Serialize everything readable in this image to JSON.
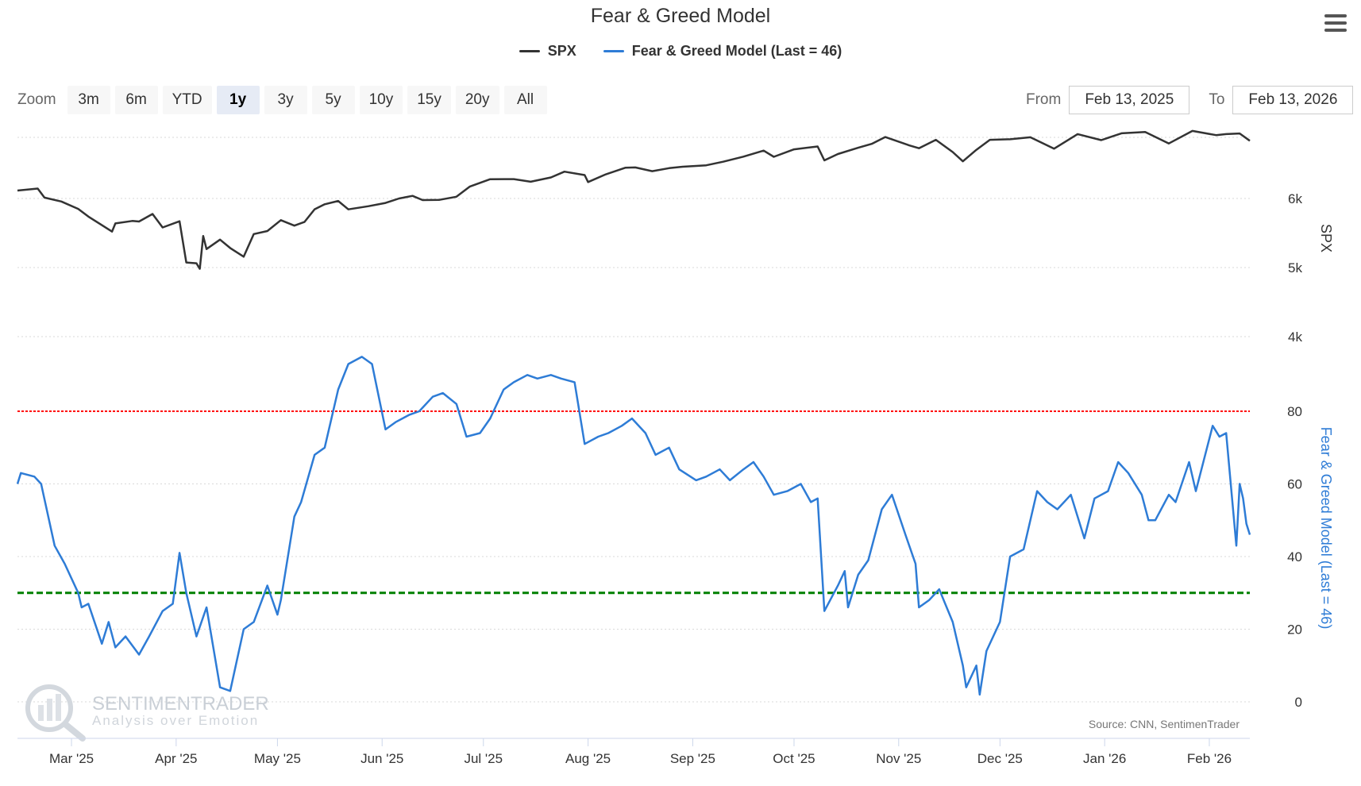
{
  "chart_title": "Fear & Greed Model",
  "legend": [
    {
      "label": "SPX",
      "color": "#333333"
    },
    {
      "label": "Fear & Greed Model (Last = 46)",
      "color": "#2e7cd6"
    }
  ],
  "zoom": {
    "label": "Zoom",
    "buttons": [
      "3m",
      "6m",
      "YTD",
      "1y",
      "3y",
      "5y",
      "10y",
      "15y",
      "20y",
      "All"
    ],
    "active": "1y"
  },
  "range": {
    "from_label": "From",
    "from_value": "Feb 13, 2025",
    "to_label": "To",
    "to_value": "Feb 13, 2026"
  },
  "credits": "Source: CNN, SentimenTrader",
  "watermark": {
    "title": "SENTIMENTRADER",
    "subtitle": "Analysis over Emotion"
  },
  "icons": {
    "menu": "hamburger-menu-icon",
    "watermark": "magnifier-chart-logo-icon"
  },
  "chart_data": [
    {
      "type": "line",
      "name": "SPX",
      "x_range": [
        "2025-02-13",
        "2026-02-13"
      ],
      "ylabel": "SPX",
      "y_ticks": [
        "6k",
        "5k",
        "4k"
      ],
      "ylim": [
        3000,
        7200
      ],
      "color": "#333333",
      "series": [
        {
          "name": "SPX",
          "points": [
            [
              "2025-02-13",
              6115
            ],
            [
              "2025-02-19",
              6144
            ],
            [
              "2025-02-21",
              6013
            ],
            [
              "2025-02-26",
              5956
            ],
            [
              "2025-03-03",
              5849
            ],
            [
              "2025-03-06",
              5738
            ],
            [
              "2025-03-10",
              5614
            ],
            [
              "2025-03-13",
              5521
            ],
            [
              "2025-03-14",
              5639
            ],
            [
              "2025-03-19",
              5675
            ],
            [
              "2025-03-21",
              5667
            ],
            [
              "2025-03-25",
              5776
            ],
            [
              "2025-03-28",
              5581
            ],
            [
              "2025-04-02",
              5670
            ],
            [
              "2025-04-04",
              5074
            ],
            [
              "2025-04-07",
              5062
            ],
            [
              "2025-04-08",
              4982
            ],
            [
              "2025-04-09",
              5456
            ],
            [
              "2025-04-10",
              5268
            ],
            [
              "2025-04-14",
              5405
            ],
            [
              "2025-04-17",
              5283
            ],
            [
              "2025-04-21",
              5158
            ],
            [
              "2025-04-24",
              5485
            ],
            [
              "2025-04-28",
              5529
            ],
            [
              "2025-05-02",
              5686
            ],
            [
              "2025-05-06",
              5607
            ],
            [
              "2025-05-09",
              5660
            ],
            [
              "2025-05-12",
              5844
            ],
            [
              "2025-05-15",
              5916
            ],
            [
              "2025-05-19",
              5964
            ],
            [
              "2025-05-22",
              5842
            ],
            [
              "2025-05-28",
              5888
            ],
            [
              "2025-06-02",
              5936
            ],
            [
              "2025-06-06",
              6000
            ],
            [
              "2025-06-10",
              6038
            ],
            [
              "2025-06-13",
              5977
            ],
            [
              "2025-06-18",
              5981
            ],
            [
              "2025-06-23",
              6025
            ],
            [
              "2025-06-27",
              6173
            ],
            [
              "2025-07-03",
              6279
            ],
            [
              "2025-07-10",
              6280
            ],
            [
              "2025-07-15",
              6243
            ],
            [
              "2025-07-21",
              6305
            ],
            [
              "2025-07-25",
              6388
            ],
            [
              "2025-07-31",
              6339
            ],
            [
              "2025-08-01",
              6238
            ],
            [
              "2025-08-06",
              6345
            ],
            [
              "2025-08-12",
              6445
            ],
            [
              "2025-08-15",
              6449
            ],
            [
              "2025-08-20",
              6395
            ],
            [
              "2025-08-25",
              6439
            ],
            [
              "2025-08-29",
              6460
            ],
            [
              "2025-09-05",
              6481
            ],
            [
              "2025-09-10",
              6532
            ],
            [
              "2025-09-16",
              6606
            ],
            [
              "2025-09-22",
              6693
            ],
            [
              "2025-09-25",
              6604
            ],
            [
              "2025-10-01",
              6711
            ],
            [
              "2025-10-08",
              6753
            ],
            [
              "2025-10-10",
              6552
            ],
            [
              "2025-10-14",
              6644
            ],
            [
              "2025-10-20",
              6735
            ],
            [
              "2025-10-24",
              6791
            ],
            [
              "2025-10-28",
              6890
            ],
            [
              "2025-11-04",
              6771
            ],
            [
              "2025-11-07",
              6728
            ],
            [
              "2025-11-12",
              6850
            ],
            [
              "2025-11-17",
              6672
            ],
            [
              "2025-11-20",
              6538
            ],
            [
              "2025-11-24",
              6705
            ],
            [
              "2025-11-28",
              6849
            ],
            [
              "2025-12-04",
              6857
            ],
            [
              "2025-12-10",
              6886
            ],
            [
              "2025-12-17",
              6721
            ],
            [
              "2025-12-24",
              6932
            ],
            [
              "2025-12-31",
              6845
            ],
            [
              "2026-01-06",
              6944
            ],
            [
              "2026-01-13",
              6963
            ],
            [
              "2026-01-20",
              6797
            ],
            [
              "2026-01-27",
              6978
            ],
            [
              "2026-02-03",
              6917
            ],
            [
              "2026-02-06",
              6932
            ],
            [
              "2026-02-10",
              6941
            ],
            [
              "2026-02-13",
              6836
            ]
          ]
        }
      ]
    },
    {
      "type": "line",
      "name": "Fear & Greed Model (Last = 46)",
      "x_range": [
        "2025-02-13",
        "2026-02-13"
      ],
      "x_ticks": [
        "Mar '25",
        "Apr '25",
        "May '25",
        "Jun '25",
        "Jul '25",
        "Aug '25",
        "Sep '25",
        "Oct '25",
        "Nov '25",
        "Dec '25",
        "Jan '26",
        "Feb '26"
      ],
      "ylabel": "Fear & Greed Model (Last = 46)",
      "y_ticks": [
        0,
        20,
        40,
        60,
        80
      ],
      "ylim": [
        0,
        100
      ],
      "color": "#2e7cd6",
      "reference_lines": [
        {
          "value": 80,
          "color": "#ff0000",
          "style": "dashed"
        },
        {
          "value": 30,
          "color": "#008000",
          "style": "dashed"
        }
      ],
      "series": [
        {
          "name": "Fear & Greed Model (Last = 46)",
          "points": [
            [
              "2025-02-13",
              60
            ],
            [
              "2025-02-14",
              63
            ],
            [
              "2025-02-18",
              62
            ],
            [
              "2025-02-20",
              60
            ],
            [
              "2025-02-24",
              43
            ],
            [
              "2025-02-27",
              38
            ],
            [
              "2025-03-03",
              30
            ],
            [
              "2025-03-04",
              26
            ],
            [
              "2025-03-06",
              27
            ],
            [
              "2025-03-10",
              16
            ],
            [
              "2025-03-12",
              22
            ],
            [
              "2025-03-14",
              15
            ],
            [
              "2025-03-17",
              18
            ],
            [
              "2025-03-21",
              13
            ],
            [
              "2025-03-24",
              18
            ],
            [
              "2025-03-28",
              25
            ],
            [
              "2025-03-31",
              27
            ],
            [
              "2025-04-02",
              41
            ],
            [
              "2025-04-04",
              30
            ],
            [
              "2025-04-07",
              18
            ],
            [
              "2025-04-10",
              26
            ],
            [
              "2025-04-14",
              4
            ],
            [
              "2025-04-17",
              3
            ],
            [
              "2025-04-21",
              20
            ],
            [
              "2025-04-24",
              22
            ],
            [
              "2025-04-28",
              32
            ],
            [
              "2025-05-01",
              24
            ],
            [
              "2025-05-02",
              28
            ],
            [
              "2025-05-06",
              51
            ],
            [
              "2025-05-08",
              55
            ],
            [
              "2025-05-12",
              68
            ],
            [
              "2025-05-15",
              70
            ],
            [
              "2025-05-19",
              86
            ],
            [
              "2025-05-22",
              93
            ],
            [
              "2025-05-26",
              95
            ],
            [
              "2025-05-29",
              93
            ],
            [
              "2025-06-02",
              75
            ],
            [
              "2025-06-05",
              77
            ],
            [
              "2025-06-09",
              79
            ],
            [
              "2025-06-12",
              80
            ],
            [
              "2025-06-16",
              84
            ],
            [
              "2025-06-19",
              85
            ],
            [
              "2025-06-23",
              82
            ],
            [
              "2025-06-26",
              73
            ],
            [
              "2025-06-30",
              74
            ],
            [
              "2025-07-03",
              78
            ],
            [
              "2025-07-07",
              86
            ],
            [
              "2025-07-10",
              88
            ],
            [
              "2025-07-14",
              90
            ],
            [
              "2025-07-17",
              89
            ],
            [
              "2025-07-21",
              90
            ],
            [
              "2025-07-24",
              89
            ],
            [
              "2025-07-28",
              88
            ],
            [
              "2025-07-31",
              71
            ],
            [
              "2025-08-04",
              73
            ],
            [
              "2025-08-07",
              74
            ],
            [
              "2025-08-11",
              76
            ],
            [
              "2025-08-14",
              78
            ],
            [
              "2025-08-18",
              74
            ],
            [
              "2025-08-21",
              68
            ],
            [
              "2025-08-25",
              70
            ],
            [
              "2025-08-28",
              64
            ],
            [
              "2025-09-02",
              61
            ],
            [
              "2025-09-05",
              62
            ],
            [
              "2025-09-09",
              64
            ],
            [
              "2025-09-12",
              61
            ],
            [
              "2025-09-16",
              64
            ],
            [
              "2025-09-19",
              66
            ],
            [
              "2025-09-22",
              62
            ],
            [
              "2025-09-25",
              57
            ],
            [
              "2025-09-29",
              58
            ],
            [
              "2025-10-03",
              60
            ],
            [
              "2025-10-06",
              55
            ],
            [
              "2025-10-08",
              56
            ],
            [
              "2025-10-10",
              25
            ],
            [
              "2025-10-14",
              32
            ],
            [
              "2025-10-16",
              36
            ],
            [
              "2025-10-17",
              26
            ],
            [
              "2025-10-20",
              35
            ],
            [
              "2025-10-23",
              39
            ],
            [
              "2025-10-27",
              53
            ],
            [
              "2025-10-30",
              57
            ],
            [
              "2025-11-03",
              46
            ],
            [
              "2025-11-06",
              38
            ],
            [
              "2025-11-07",
              26
            ],
            [
              "2025-11-10",
              28
            ],
            [
              "2025-11-13",
              31
            ],
            [
              "2025-11-17",
              22
            ],
            [
              "2025-11-20",
              10
            ],
            [
              "2025-11-21",
              4
            ],
            [
              "2025-11-24",
              10
            ],
            [
              "2025-11-25",
              2
            ],
            [
              "2025-11-27",
              14
            ],
            [
              "2025-12-01",
              22
            ],
            [
              "2025-12-04",
              40
            ],
            [
              "2025-12-08",
              42
            ],
            [
              "2025-12-12",
              58
            ],
            [
              "2025-12-15",
              55
            ],
            [
              "2025-12-18",
              53
            ],
            [
              "2025-12-22",
              57
            ],
            [
              "2025-12-26",
              45
            ],
            [
              "2025-12-29",
              56
            ],
            [
              "2026-01-02",
              58
            ],
            [
              "2026-01-05",
              66
            ],
            [
              "2026-01-08",
              63
            ],
            [
              "2026-01-12",
              57
            ],
            [
              "2026-01-14",
              50
            ],
            [
              "2026-01-16",
              50
            ],
            [
              "2026-01-20",
              57
            ],
            [
              "2026-01-22",
              55
            ],
            [
              "2026-01-26",
              66
            ],
            [
              "2026-01-28",
              58
            ],
            [
              "2026-02-02",
              76
            ],
            [
              "2026-02-04",
              73
            ],
            [
              "2026-02-06",
              74
            ],
            [
              "2026-02-09",
              43
            ],
            [
              "2026-02-10",
              60
            ],
            [
              "2026-02-11",
              56
            ],
            [
              "2026-02-12",
              49
            ],
            [
              "2026-02-13",
              46
            ]
          ]
        }
      ]
    }
  ]
}
